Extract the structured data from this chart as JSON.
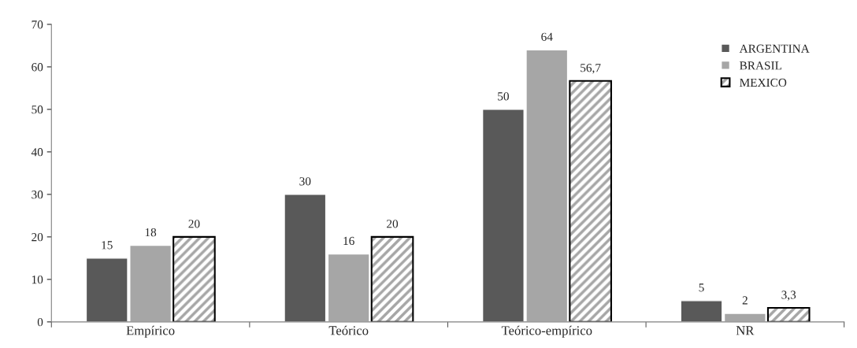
{
  "chart_data": {
    "type": "bar",
    "categories": [
      "Empírico",
      "Teórico",
      "Teórico-empírico",
      "NR"
    ],
    "series": [
      {
        "name": "ARGENTINA",
        "color": "#595959",
        "values": [
          15,
          30,
          50,
          5
        ],
        "value_labels": [
          "15",
          "30",
          "50",
          "5"
        ]
      },
      {
        "name": "BRASIL",
        "color": "#a6a6a6",
        "values": [
          18,
          16,
          64,
          2
        ],
        "value_labels": [
          "18",
          "16",
          "64",
          "2"
        ]
      },
      {
        "name": "MEXICO",
        "color": "#000000",
        "values": [
          20,
          20,
          56.7,
          3.3
        ],
        "value_labels": [
          "20",
          "20",
          "56,7",
          "3,3"
        ]
      }
    ],
    "ylim": [
      0,
      70
    ],
    "yticks": [
      0,
      10,
      20,
      30,
      40,
      50,
      60,
      70
    ],
    "grid": false,
    "legend": "top right"
  }
}
